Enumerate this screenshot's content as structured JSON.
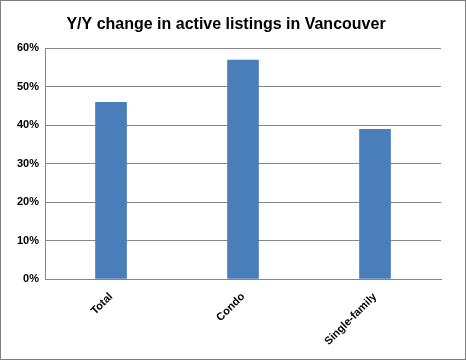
{
  "chart_data": {
    "type": "bar",
    "title": "Y/Y change in active listings in Vancouver",
    "categories": [
      "Total",
      "Condo",
      "Single-family"
    ],
    "values": [
      46,
      57,
      39
    ],
    "color": "#4a7ebb",
    "ylim": [
      0,
      60
    ],
    "yticks": [
      {
        "value": 0,
        "label": "0%"
      },
      {
        "value": 10,
        "label": "10%"
      },
      {
        "value": 20,
        "label": "20%"
      },
      {
        "value": 30,
        "label": "30%"
      },
      {
        "value": 40,
        "label": "40%"
      },
      {
        "value": 50,
        "label": "50%"
      },
      {
        "value": 60,
        "label": "60%"
      }
    ],
    "grid": true
  }
}
